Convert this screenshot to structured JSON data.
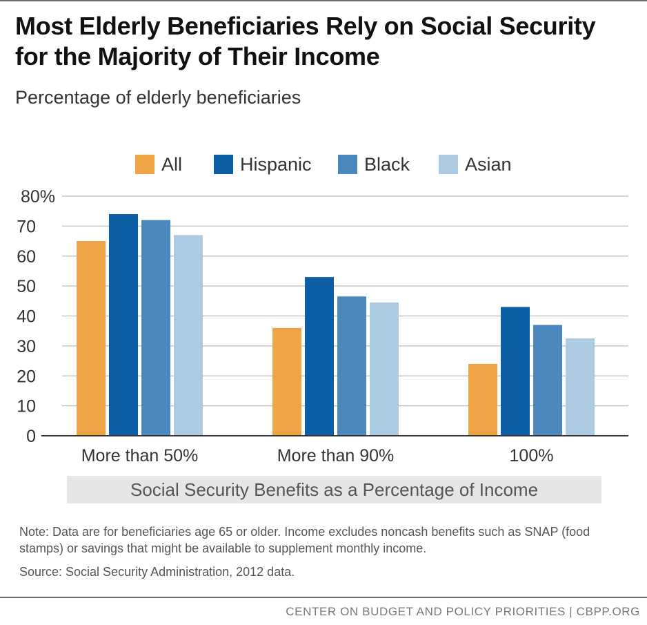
{
  "title": "Most Elderly Beneficiaries Rely on Social Security for the Majority of Their Income",
  "subtitle": "Percentage of elderly beneficiaries",
  "axis_title": "Social Security Benefits as a Percentage of Income",
  "note": "Note:  Data are for beneficiaries age 65 or older.  Income excludes noncash benefits such as SNAP (food stamps) or savings that might be available to supplement monthly income.",
  "source": "Source: Social Security Administration, 2012 data.",
  "footer": "CENTER ON BUDGET AND POLICY PRIORITIES | CBPP.ORG",
  "chart_data": {
    "type": "bar",
    "title": "Most Elderly Beneficiaries Rely on Social Security for the Majority of Their Income",
    "subtitle": "Percentage of elderly beneficiaries",
    "xlabel": "Social Security Benefits as a Percentage of Income",
    "ylabel": "",
    "categories": [
      "More than 50%",
      "More than 90%",
      "100%"
    ],
    "series": [
      {
        "name": "All",
        "color": "#eea345",
        "values": [
          65,
          36,
          24
        ]
      },
      {
        "name": "Hispanic",
        "color": "#0e5ea5",
        "values": [
          74,
          53,
          43
        ]
      },
      {
        "name": "Black",
        "color": "#4a88be",
        "values": [
          72,
          46.5,
          37
        ]
      },
      {
        "name": "Asian",
        "color": "#adcbe3",
        "values": [
          67,
          44.5,
          32.5
        ]
      }
    ],
    "ylim": [
      0,
      80
    ],
    "yticks": [
      0,
      10,
      20,
      30,
      40,
      50,
      60,
      70,
      80
    ],
    "ytick_labels": [
      "0",
      "10",
      "20",
      "30",
      "40",
      "50",
      "60",
      "70",
      "80%"
    ],
    "grid": true,
    "legend_position": "top"
  }
}
